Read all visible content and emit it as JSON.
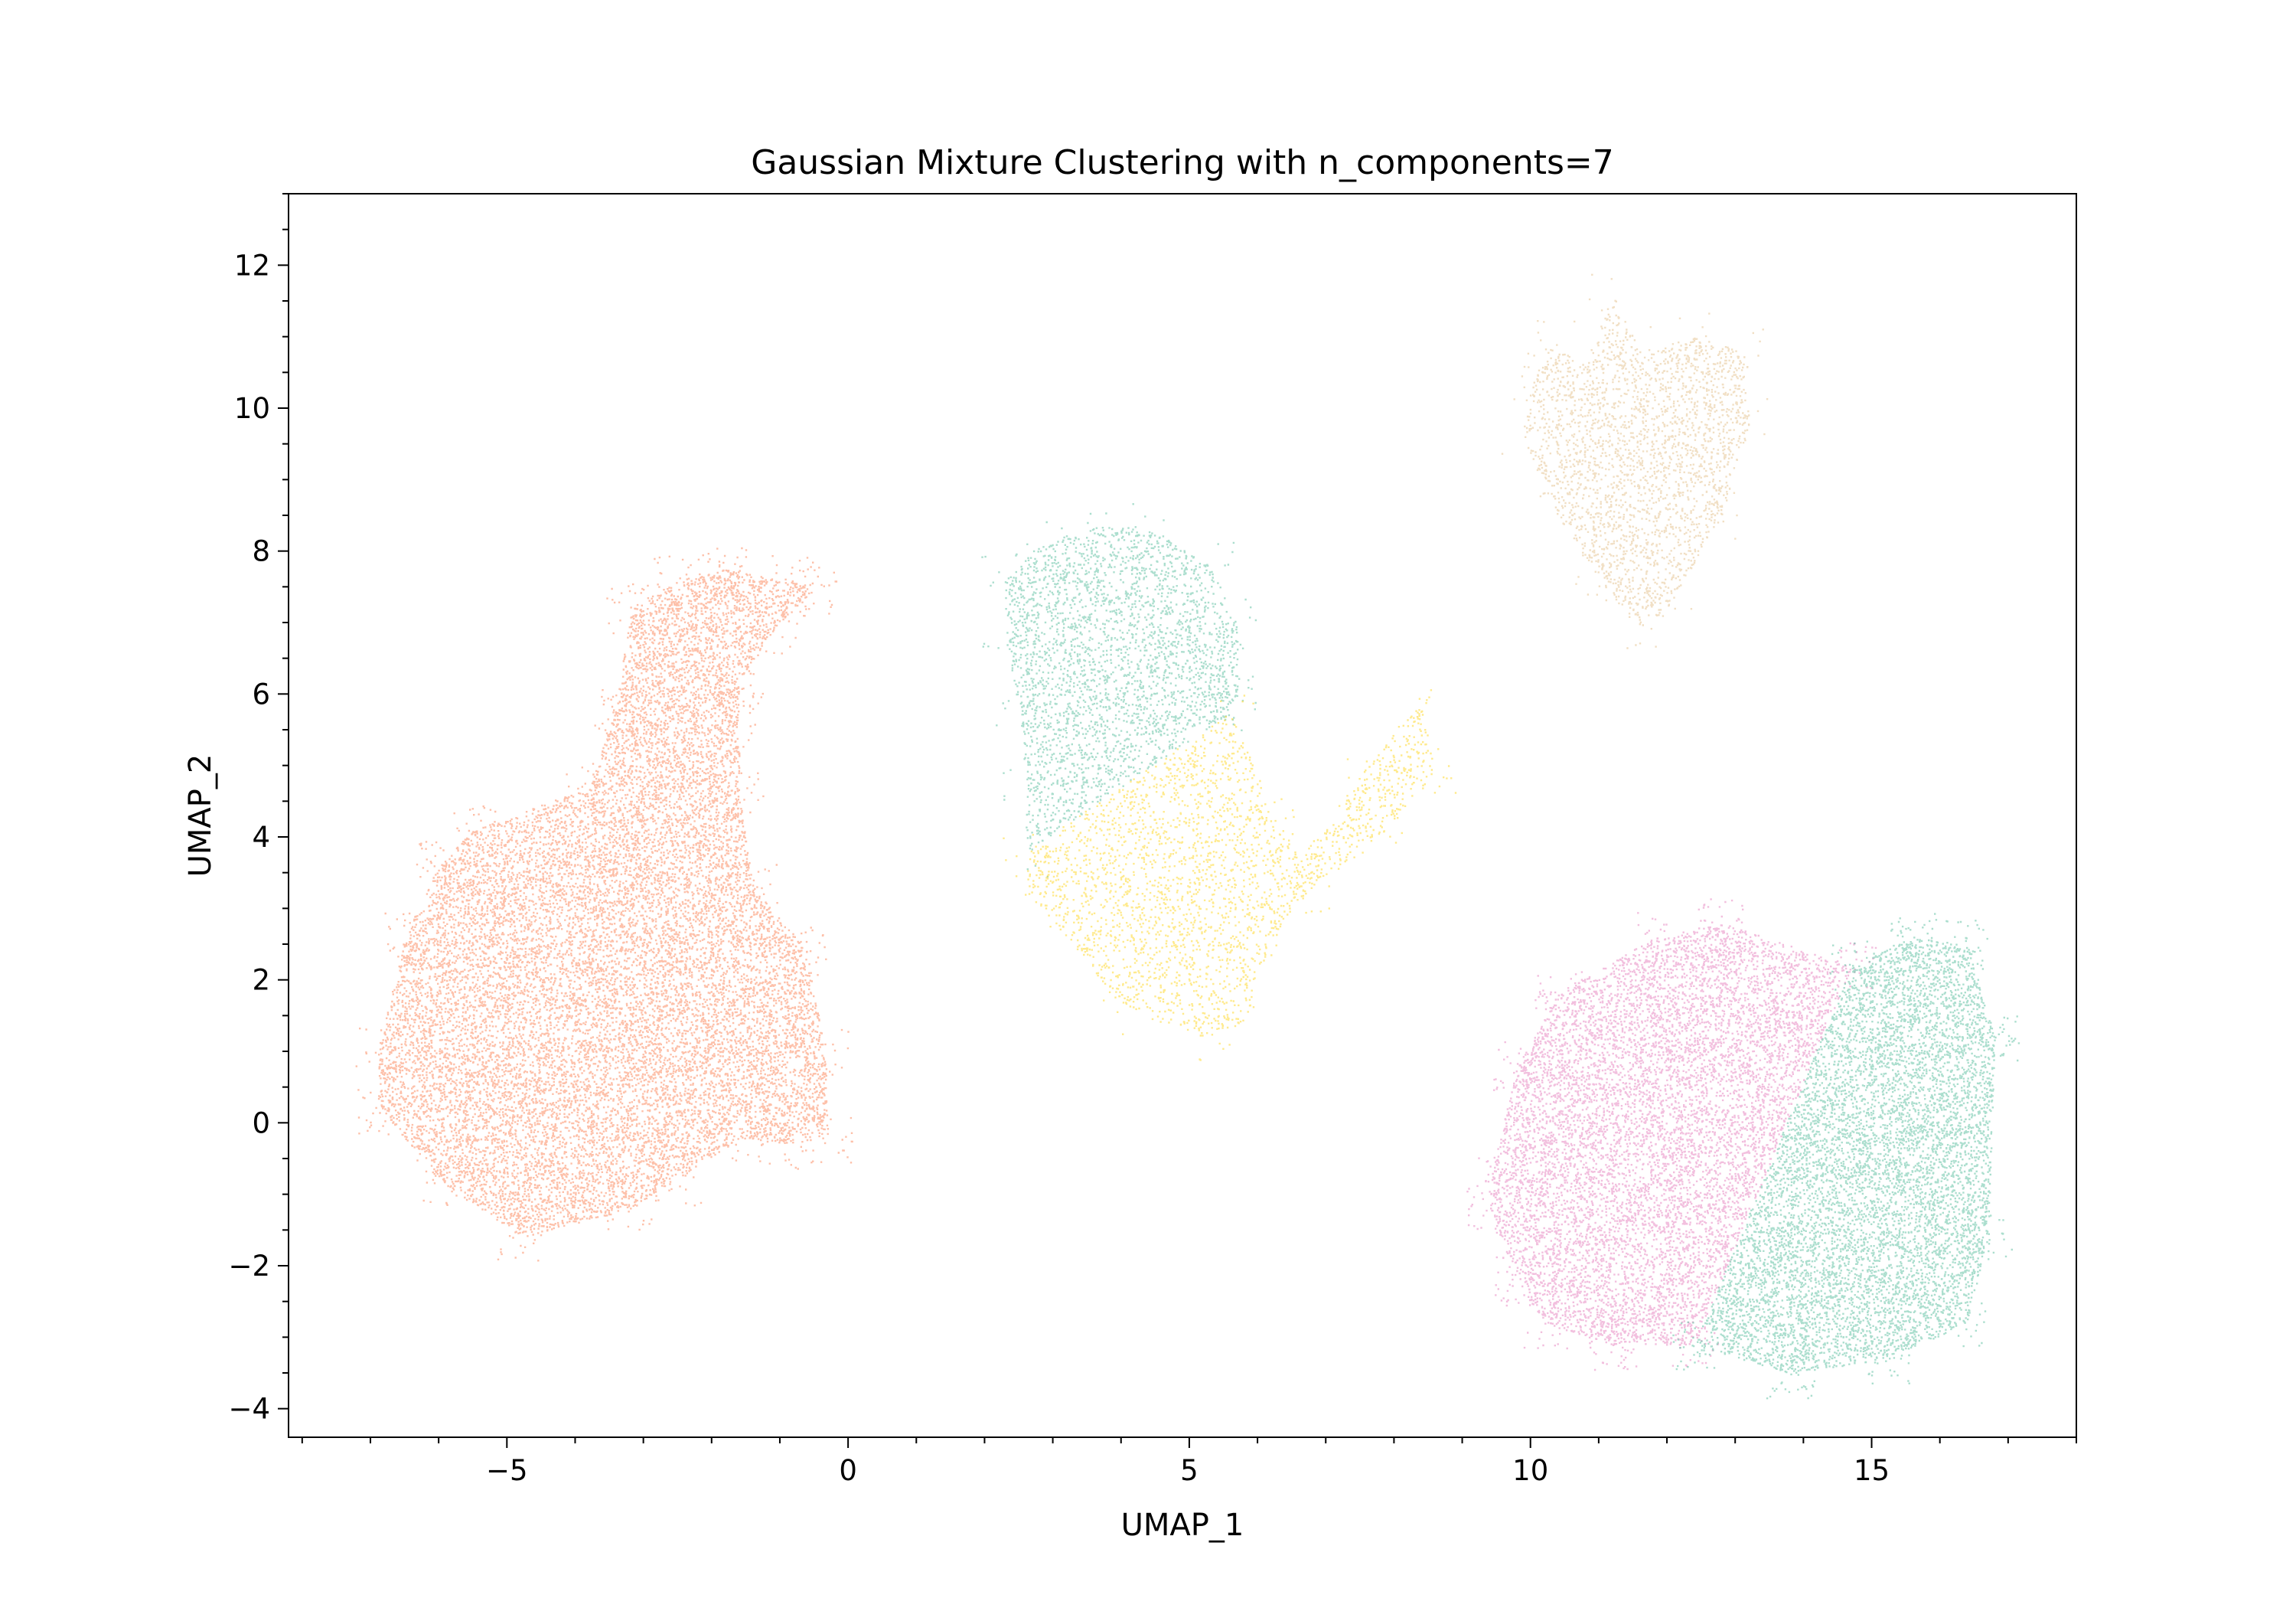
{
  "chart_data": {
    "type": "scatter",
    "title": "Gaussian Mixture Clustering with n_components=7",
    "xlabel": "UMAP_1",
    "ylabel": "UMAP_2",
    "xlim": [
      -8.2,
      18.0
    ],
    "ylim": [
      -4.4,
      13.0
    ],
    "xticks": [
      -5,
      0,
      5,
      10,
      15
    ],
    "xtick_labels": [
      "−5",
      "0",
      "5",
      "10",
      "15"
    ],
    "yticks": [
      -4,
      -2,
      0,
      2,
      4,
      6,
      8,
      10,
      12
    ],
    "ytick_labels": [
      "−4",
      "−2",
      "0",
      "2",
      "4",
      "6",
      "8",
      "10",
      "12"
    ],
    "grid": false,
    "legend": "none",
    "marker_size": 0.5,
    "clusters": [
      {
        "color": "#fc8d62",
        "center": [
          -3.5,
          1.5
        ],
        "point_count": 230000,
        "outline": [
          [
            -6.9,
            1.0
          ],
          [
            -6.5,
            2.6
          ],
          [
            -6.0,
            3.6
          ],
          [
            -5.5,
            4.1
          ],
          [
            -3.8,
            4.7
          ],
          [
            -3.4,
            5.8
          ],
          [
            -3.2,
            7.2
          ],
          [
            -2.5,
            7.6
          ],
          [
            -1.8,
            7.75
          ],
          [
            -0.8,
            7.6
          ],
          [
            -0.5,
            7.45
          ],
          [
            -1.1,
            6.9
          ],
          [
            -1.6,
            6.2
          ],
          [
            -1.6,
            5.6
          ],
          [
            -1.6,
            4.6
          ],
          [
            -1.4,
            3.3
          ],
          [
            -0.6,
            2.4
          ],
          [
            -0.35,
            1.0
          ],
          [
            -0.3,
            -0.2
          ],
          [
            -1.0,
            -0.3
          ],
          [
            -1.6,
            -0.2
          ],
          [
            -2.5,
            -0.8
          ],
          [
            -3.2,
            -1.2
          ],
          [
            -4.8,
            -1.6
          ],
          [
            -6.0,
            -0.8
          ],
          [
            -6.85,
            0.2
          ]
        ]
      },
      {
        "color": "#66c2a5",
        "center": [
          4.3,
          6.4
        ],
        "point_count": 40000,
        "outline": [
          [
            2.3,
            7.6
          ],
          [
            2.8,
            8.1
          ],
          [
            3.6,
            8.35
          ],
          [
            4.4,
            8.35
          ],
          [
            5.3,
            7.8
          ],
          [
            5.7,
            7.0
          ],
          [
            5.7,
            6.0
          ],
          [
            5.6,
            5.75
          ],
          [
            2.6,
            3.8
          ],
          [
            2.6,
            4.8
          ],
          [
            2.5,
            5.8
          ],
          [
            2.3,
            6.8
          ]
        ]
      },
      {
        "color": "#ffd92f",
        "center": [
          5.2,
          3.1
        ],
        "point_count": 35000,
        "outline": [
          [
            2.6,
            3.8
          ],
          [
            5.6,
            5.75
          ],
          [
            6.2,
            4.4
          ],
          [
            6.6,
            3.7
          ],
          [
            7.0,
            4.2
          ],
          [
            7.6,
            5.0
          ],
          [
            8.4,
            5.9
          ],
          [
            8.6,
            4.9
          ],
          [
            7.8,
            4.0
          ],
          [
            6.8,
            3.3
          ],
          [
            6.2,
            2.6
          ],
          [
            5.8,
            1.4
          ],
          [
            5.2,
            1.2
          ],
          [
            4.0,
            1.6
          ],
          [
            3.2,
            2.6
          ],
          [
            2.6,
            3.3
          ]
        ]
      },
      {
        "color": "#e78ac3",
        "center": [
          11.5,
          0.0
        ],
        "point_count": 120000,
        "outline": [
          [
            9.4,
            -0.8
          ],
          [
            9.8,
            0.8
          ],
          [
            10.4,
            1.8
          ],
          [
            11.8,
            2.6
          ],
          [
            12.8,
            2.8
          ],
          [
            14.7,
            2.2
          ],
          [
            12.4,
            -3.1
          ],
          [
            11.2,
            -3.1
          ],
          [
            10.2,
            -2.8
          ],
          [
            9.8,
            -2.2
          ],
          [
            9.4,
            -1.2
          ]
        ]
      },
      {
        "color": "#66c2a5",
        "center": [
          14.8,
          -0.6
        ],
        "point_count": 110000,
        "outline": [
          [
            14.7,
            2.2
          ],
          [
            15.6,
            2.6
          ],
          [
            16.4,
            2.5
          ],
          [
            16.8,
            1.2
          ],
          [
            16.7,
            -1.6
          ],
          [
            16.4,
            -2.8
          ],
          [
            15.2,
            -3.3
          ],
          [
            13.8,
            -3.5
          ],
          [
            12.4,
            -3.1
          ]
        ]
      },
      {
        "color": "#e5c494",
        "center": [
          11.4,
          9.5
        ],
        "point_count": 30000,
        "outline": [
          [
            10.0,
            10.3
          ],
          [
            10.3,
            10.9
          ],
          [
            10.8,
            10.6
          ],
          [
            11.2,
            11.6
          ],
          [
            11.6,
            10.8
          ],
          [
            12.4,
            11.0
          ],
          [
            13.1,
            10.8
          ],
          [
            13.2,
            9.8
          ],
          [
            12.8,
            8.5
          ],
          [
            12.0,
            7.2
          ],
          [
            11.6,
            6.9
          ],
          [
            11.0,
            7.6
          ],
          [
            10.3,
            8.6
          ],
          [
            9.9,
            9.6
          ]
        ]
      }
    ]
  }
}
